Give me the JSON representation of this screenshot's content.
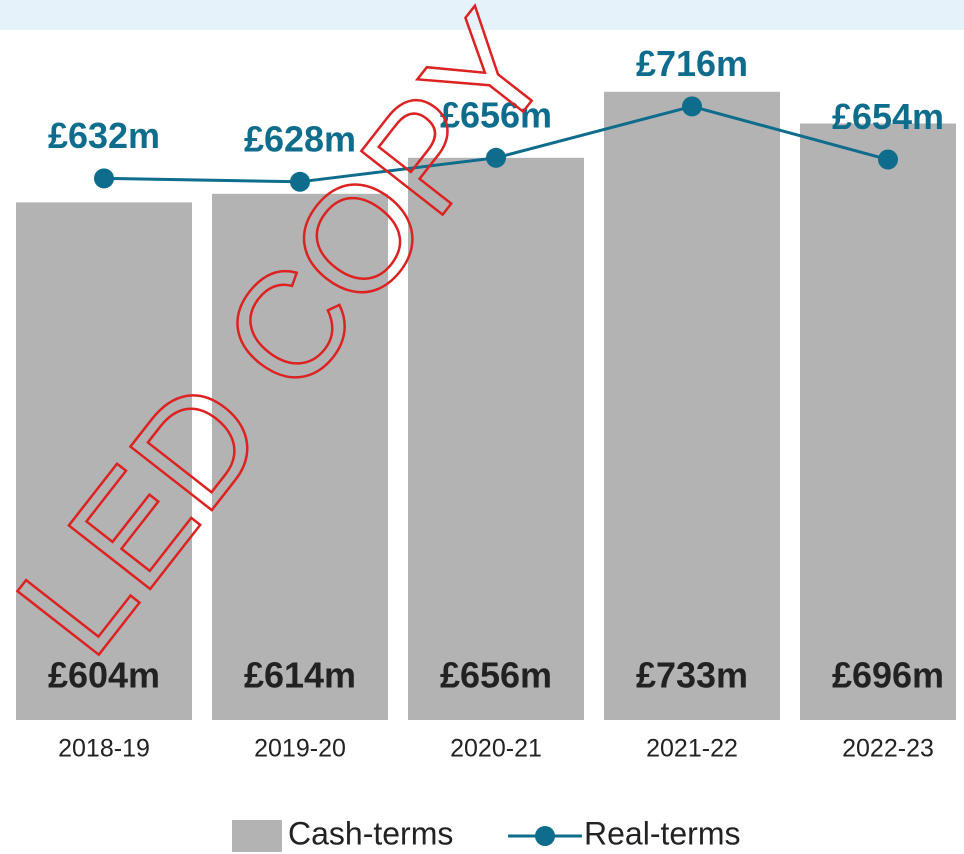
{
  "chart_data": {
    "type": "bar_line",
    "categories": [
      "2018-19",
      "2019-20",
      "2020-21",
      "2021-22",
      "2022-23"
    ],
    "series": [
      {
        "name": "Cash-terms",
        "type": "bar",
        "color": "#b3b3b3",
        "values": [
          604,
          614,
          656,
          733,
          696
        ],
        "value_labels": [
          "£604m",
          "£614m",
          "£656m",
          "£733m",
          "£696m"
        ]
      },
      {
        "name": "Real-terms",
        "type": "line",
        "color": "#0e6d8c",
        "values": [
          632,
          628,
          656,
          716,
          654
        ],
        "value_labels": [
          "£632m",
          "£628m",
          "£656m",
          "£716m",
          "£654m"
        ]
      }
    ],
    "watermark": "LED COPY"
  }
}
